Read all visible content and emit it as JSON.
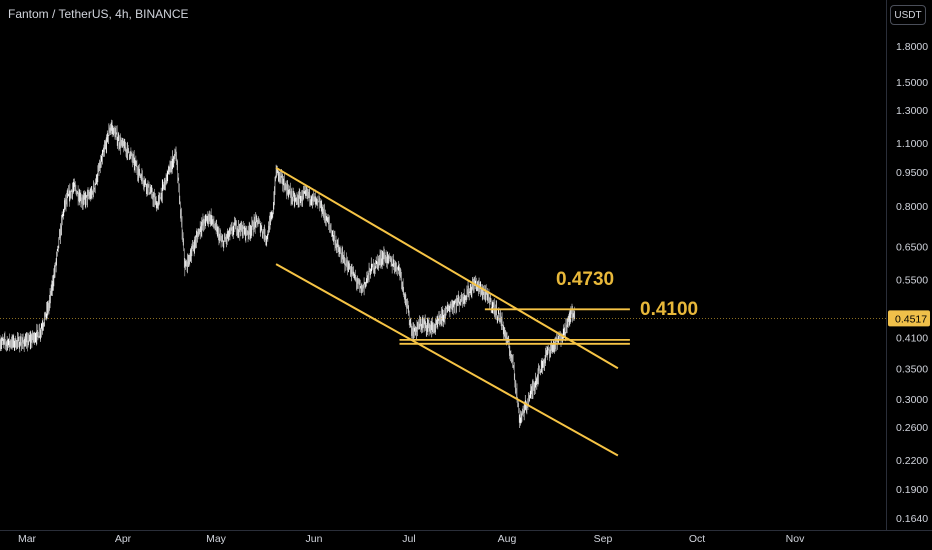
{
  "header": {
    "symbol_title": "Fantom / TetherUS, 4h, BINANCE",
    "currency": "USDT"
  },
  "colors": {
    "background": "#000000",
    "candle": "#ffffff",
    "trendline": "#f6c445",
    "text": "#d1d4dc",
    "annotation": "#e8b83a",
    "price_tag_bg": "#f0c04a",
    "axis_border": "#2a2e39"
  },
  "chart_data": {
    "type": "candlestick",
    "title": "Fantom / TetherUS, 4h, BINANCE",
    "y_scale": "log",
    "y_currency": "USDT",
    "ylim": [
      0.16,
      2.0
    ],
    "y_ticks": [
      "1.8000",
      "1.5000",
      "1.3000",
      "1.1000",
      "0.9500",
      "0.8000",
      "0.6500",
      "0.5500",
      "0.4100",
      "0.3500",
      "0.3000",
      "0.2600",
      "0.2200",
      "0.1900",
      "0.1640"
    ],
    "x_ticks": [
      "Mar",
      "Apr",
      "May",
      "Jun",
      "Jul",
      "Aug",
      "Sep",
      "Oct",
      "Nov"
    ],
    "last_price": "0.4517",
    "price_path": [
      [
        "Mar 1",
        0.4
      ],
      [
        "Mar 5",
        0.42
      ],
      [
        "Mar 8",
        0.48
      ],
      [
        "Mar 10",
        0.58
      ],
      [
        "Mar 13",
        0.8
      ],
      [
        "Mar 16",
        0.88
      ],
      [
        "Mar 19",
        0.82
      ],
      [
        "Mar 22",
        0.85
      ],
      [
        "Mar 25",
        1.0
      ],
      [
        "Mar 28",
        1.2
      ],
      [
        "Mar 31",
        1.1
      ],
      [
        "Apr 3",
        1.05
      ],
      [
        "Apr 6",
        0.95
      ],
      [
        "Apr 9",
        0.88
      ],
      [
        "Apr 12",
        0.8
      ],
      [
        "Apr 15",
        0.92
      ],
      [
        "Apr 18",
        1.05
      ],
      [
        "Apr 21",
        0.58
      ],
      [
        "Apr 23",
        0.63
      ],
      [
        "Apr 26",
        0.72
      ],
      [
        "Apr 29",
        0.76
      ],
      [
        "May 3",
        0.66
      ],
      [
        "May 7",
        0.72
      ],
      [
        "May 11",
        0.7
      ],
      [
        "May 14",
        0.74
      ],
      [
        "May 17",
        0.68
      ],
      [
        "May 19",
        0.78
      ],
      [
        "May 20",
        0.96
      ],
      [
        "May 23",
        0.88
      ],
      [
        "May 26",
        0.82
      ],
      [
        "May 30",
        0.85
      ],
      [
        "Jun 3",
        0.8
      ],
      [
        "Jun 6",
        0.72
      ],
      [
        "Jun 9",
        0.63
      ],
      [
        "Jun 13",
        0.57
      ],
      [
        "Jun 16",
        0.52
      ],
      [
        "Jun 19",
        0.58
      ],
      [
        "Jun 23",
        0.62
      ],
      [
        "Jun 28",
        0.58
      ],
      [
        "Jul 2",
        0.42
      ],
      [
        "Jul 5",
        0.44
      ],
      [
        "Jul 9",
        0.43
      ],
      [
        "Jul 14",
        0.48
      ],
      [
        "Jul 18",
        0.5
      ],
      [
        "Jul 22",
        0.54
      ],
      [
        "Jul 26",
        0.5
      ],
      [
        "Jul 30",
        0.45
      ],
      [
        "Aug 3",
        0.36
      ],
      [
        "Aug 5",
        0.27
      ],
      [
        "Aug 8",
        0.3
      ],
      [
        "Aug 11",
        0.34
      ],
      [
        "Aug 14",
        0.38
      ],
      [
        "Aug 17",
        0.4
      ],
      [
        "Aug 20",
        0.43
      ],
      [
        "Aug 22",
        0.47
      ],
      [
        "Aug 23",
        0.4517
      ]
    ],
    "annotations": [
      {
        "label": "0.4730",
        "price": 0.473
      },
      {
        "label": "0.4100",
        "price": 0.41
      }
    ],
    "channel_lines": [
      {
        "name": "upper-trendline",
        "from": [
          "May 20",
          0.97
        ],
        "to": [
          "Aug 31",
          0.37
        ]
      },
      {
        "name": "lower-trendline",
        "from": [
          "May 20",
          0.595
        ],
        "to": [
          "Aug 31",
          0.237
        ]
      }
    ],
    "horizontal_levels": [
      {
        "name": "resistance-level",
        "price": 0.473,
        "from": "Jul 25",
        "to": "Aug 31"
      },
      {
        "name": "support-level-upper",
        "price": 0.405,
        "from": "Jun 28",
        "to": "Aug 31"
      },
      {
        "name": "support-level-lower",
        "price": 0.397,
        "from": "Jun 28",
        "to": "Aug 31"
      }
    ]
  }
}
